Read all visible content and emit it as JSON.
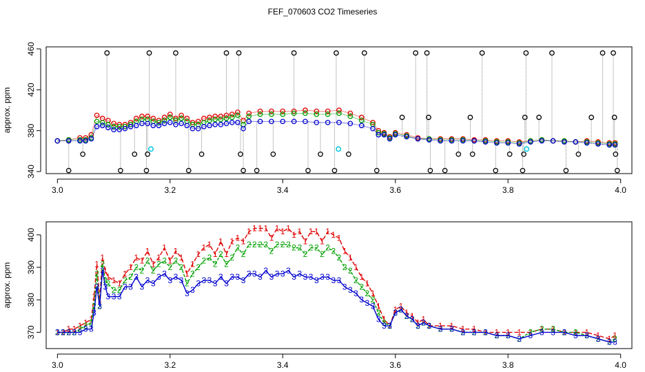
{
  "title": "FEF_070603  CO2 Timeseries",
  "chart_data": [
    {
      "type": "scatter",
      "ylabel": "approx. ppm",
      "xlim": [
        2.98,
        4.02
      ],
      "ylim": [
        338,
        462
      ],
      "xticks": [
        3.0,
        3.2,
        3.4,
        3.6,
        3.8,
        4.0
      ],
      "xtick_labels": [
        "3.0",
        "3.2",
        "3.4",
        "3.6",
        "3.8",
        "4.0"
      ],
      "yticks": [
        340,
        380,
        420,
        460
      ],
      "ytick_labels": [
        "340",
        "380",
        "420",
        "460"
      ],
      "series_colors": [
        "#e00000",
        "#00a000",
        "#0000d0"
      ],
      "outlier_color": "#000000",
      "cyan_color": "#00c8e0",
      "grid": false,
      "x": [
        3.0,
        3.02,
        3.04,
        3.05,
        3.06,
        3.07,
        3.08,
        3.09,
        3.1,
        3.11,
        3.12,
        3.13,
        3.14,
        3.15,
        3.16,
        3.17,
        3.18,
        3.19,
        3.2,
        3.21,
        3.22,
        3.23,
        3.24,
        3.25,
        3.26,
        3.27,
        3.28,
        3.29,
        3.3,
        3.31,
        3.32,
        3.33,
        3.34,
        3.36,
        3.38,
        3.4,
        3.42,
        3.44,
        3.46,
        3.48,
        3.5,
        3.52,
        3.54,
        3.56,
        3.57,
        3.58,
        3.59,
        3.6,
        3.62,
        3.64,
        3.66,
        3.68,
        3.7,
        3.72,
        3.74,
        3.76,
        3.78,
        3.8,
        3.82,
        3.84,
        3.86,
        3.88,
        3.9,
        3.92,
        3.94,
        3.96,
        3.98,
        3.99
      ],
      "series": [
        {
          "values": [
            370,
            371,
            373,
            373,
            376,
            395,
            392,
            390,
            387,
            386,
            386,
            388,
            392,
            394,
            394,
            392,
            390,
            393,
            396,
            392,
            395,
            392,
            388,
            389,
            392,
            393,
            394,
            394,
            395,
            396,
            398,
            390,
            397,
            399,
            399,
            399,
            399,
            400,
            399,
            399,
            400,
            397,
            393,
            388,
            380,
            378,
            374,
            378,
            376,
            373,
            372,
            372,
            372,
            372,
            371,
            371,
            370,
            370,
            369,
            370,
            371,
            370,
            370,
            369,
            370,
            369,
            368,
            368
          ]
        },
        {
          "values": [
            370,
            371,
            371,
            371,
            373,
            389,
            388,
            386,
            384,
            384,
            384,
            386,
            389,
            391,
            391,
            389,
            388,
            390,
            393,
            390,
            392,
            389,
            386,
            386,
            388,
            390,
            391,
            391,
            392,
            393,
            395,
            386,
            394,
            396,
            396,
            396,
            397,
            397,
            396,
            396,
            397,
            394,
            390,
            386,
            378,
            377,
            373,
            377,
            375,
            372,
            372,
            371,
            371,
            371,
            370,
            370,
            369,
            369,
            368,
            370,
            371,
            370,
            370,
            369,
            369,
            368,
            367,
            367
          ]
        },
        {
          "values": [
            370,
            370,
            370,
            370,
            372,
            384,
            385,
            383,
            381,
            381,
            382,
            384,
            385,
            387,
            387,
            385,
            385,
            387,
            388,
            386,
            387,
            385,
            382,
            382,
            384,
            385,
            386,
            386,
            387,
            388,
            388,
            382,
            389,
            389,
            389,
            389,
            389,
            389,
            388,
            388,
            388,
            387,
            385,
            382,
            376,
            376,
            372,
            376,
            374,
            372,
            371,
            370,
            370,
            370,
            370,
            369,
            368,
            368,
            367,
            369,
            370,
            370,
            369,
            369,
            368,
            367,
            366,
            366
          ]
        }
      ],
      "outliers": [
        {
          "x": 3.02,
          "high": 341
        },
        {
          "x": 3.045,
          "high": 357
        },
        {
          "x": 3.088,
          "high": 456
        },
        {
          "x": 3.112,
          "high": 341
        },
        {
          "x": 3.137,
          "high": 357
        },
        {
          "x": 3.158,
          "high": 341
        },
        {
          "x": 3.16,
          "high": 357
        },
        {
          "x": 3.163,
          "high": 456
        },
        {
          "x": 3.21,
          "high": 456
        },
        {
          "x": 3.233,
          "high": 341
        },
        {
          "x": 3.256,
          "high": 357
        },
        {
          "x": 3.3,
          "high": 456
        },
        {
          "x": 3.322,
          "high": 456
        },
        {
          "x": 3.325,
          "high": 357
        },
        {
          "x": 3.33,
          "high": 341
        },
        {
          "x": 3.354,
          "high": 341
        },
        {
          "x": 3.383,
          "high": 357
        },
        {
          "x": 3.42,
          "high": 456
        },
        {
          "x": 3.445,
          "high": 341
        },
        {
          "x": 3.467,
          "high": 357
        },
        {
          "x": 3.492,
          "high": 341
        },
        {
          "x": 3.495,
          "high": 456
        },
        {
          "x": 3.517,
          "high": 357
        },
        {
          "x": 3.545,
          "high": 456
        },
        {
          "x": 3.567,
          "high": 341
        },
        {
          "x": 3.612,
          "high": 393
        },
        {
          "x": 3.636,
          "high": 456
        },
        {
          "x": 3.656,
          "high": 456
        },
        {
          "x": 3.659,
          "high": 393
        },
        {
          "x": 3.662,
          "high": 341
        },
        {
          "x": 3.688,
          "high": 341
        },
        {
          "x": 3.712,
          "high": 357
        },
        {
          "x": 3.737,
          "high": 357
        },
        {
          "x": 3.733,
          "high": 393
        },
        {
          "x": 3.754,
          "high": 456
        },
        {
          "x": 3.778,
          "high": 341
        },
        {
          "x": 3.803,
          "high": 357
        },
        {
          "x": 3.826,
          "high": 341
        },
        {
          "x": 3.828,
          "high": 357
        },
        {
          "x": 3.83,
          "high": 393
        },
        {
          "x": 3.832,
          "high": 456
        },
        {
          "x": 3.855,
          "high": 393
        },
        {
          "x": 3.878,
          "high": 456
        },
        {
          "x": 3.903,
          "high": 341
        },
        {
          "x": 3.925,
          "high": 357
        },
        {
          "x": 3.948,
          "high": 393
        },
        {
          "x": 3.968,
          "high": 456
        },
        {
          "x": 3.987,
          "high": 456
        },
        {
          "x": 3.989,
          "high": 393
        },
        {
          "x": 3.991,
          "high": 357
        },
        {
          "x": 3.994,
          "high": 341
        }
      ],
      "cyan_points": [
        {
          "x": 3.166,
          "y": 362
        },
        {
          "x": 3.499,
          "y": 362
        },
        {
          "x": 3.833,
          "y": 362
        }
      ]
    },
    {
      "type": "line",
      "ylabel": "approx. ppm",
      "xlim": [
        2.98,
        4.02
      ],
      "ylim": [
        365,
        404
      ],
      "xticks": [
        3.0,
        3.2,
        3.4,
        3.6,
        3.8,
        4.0
      ],
      "xtick_labels": [
        "3.0",
        "3.2",
        "3.4",
        "3.6",
        "3.8",
        "4.0"
      ],
      "yticks": [
        370,
        380,
        390,
        400
      ],
      "ytick_labels": [
        "370",
        "380",
        "390",
        "400"
      ],
      "series_colors": [
        "#e00000",
        "#00a000",
        "#0000d0"
      ],
      "grid": false,
      "x": [
        3.0,
        3.01,
        3.02,
        3.03,
        3.04,
        3.05,
        3.06,
        3.065,
        3.07,
        3.075,
        3.08,
        3.085,
        3.09,
        3.1,
        3.11,
        3.12,
        3.13,
        3.14,
        3.15,
        3.16,
        3.17,
        3.18,
        3.19,
        3.2,
        3.21,
        3.22,
        3.23,
        3.24,
        3.25,
        3.26,
        3.27,
        3.28,
        3.29,
        3.3,
        3.31,
        3.32,
        3.33,
        3.34,
        3.35,
        3.36,
        3.37,
        3.38,
        3.39,
        3.4,
        3.41,
        3.42,
        3.43,
        3.44,
        3.45,
        3.46,
        3.47,
        3.48,
        3.49,
        3.5,
        3.51,
        3.52,
        3.53,
        3.54,
        3.55,
        3.56,
        3.57,
        3.58,
        3.59,
        3.6,
        3.61,
        3.62,
        3.63,
        3.64,
        3.65,
        3.66,
        3.68,
        3.7,
        3.72,
        3.74,
        3.76,
        3.78,
        3.8,
        3.82,
        3.84,
        3.86,
        3.88,
        3.9,
        3.92,
        3.94,
        3.96,
        3.98,
        3.99
      ],
      "series": [
        {
          "marker": "1",
          "values": [
            370,
            370,
            371,
            371,
            372,
            373,
            374,
            381,
            391,
            380,
            393,
            389,
            387,
            386,
            385,
            388,
            390,
            393,
            392,
            395,
            391,
            393,
            396,
            392,
            395,
            393,
            388,
            391,
            394,
            396,
            397,
            394,
            398,
            394,
            398,
            399,
            398,
            401,
            402,
            402,
            402,
            399,
            402,
            401,
            402,
            400,
            401,
            398,
            401,
            401,
            398,
            401,
            400,
            399,
            395,
            393,
            390,
            387,
            385,
            382,
            378,
            374,
            372,
            377,
            378,
            376,
            375,
            373,
            374,
            372,
            372,
            372,
            371,
            371,
            370,
            370,
            370,
            370,
            370,
            371,
            371,
            370,
            370,
            370,
            369,
            368,
            369
          ]
        },
        {
          "marker": "2",
          "values": [
            370,
            370,
            370,
            370,
            371,
            372,
            373,
            378,
            388,
            378,
            391,
            386,
            385,
            383,
            383,
            386,
            387,
            390,
            389,
            392,
            389,
            391,
            392,
            390,
            392,
            390,
            385,
            388,
            390,
            392,
            393,
            391,
            394,
            391,
            393,
            396,
            394,
            397,
            397,
            397,
            397,
            395,
            397,
            397,
            397,
            396,
            396,
            394,
            396,
            396,
            394,
            396,
            395,
            393,
            390,
            389,
            386,
            384,
            382,
            380,
            376,
            373,
            372,
            376,
            377,
            375,
            374,
            372,
            373,
            372,
            371,
            371,
            370,
            370,
            370,
            369,
            369,
            368,
            370,
            371,
            371,
            370,
            370,
            369,
            368,
            367,
            368
          ]
        },
        {
          "marker": "3",
          "values": [
            370,
            370,
            370,
            370,
            370,
            371,
            371,
            376,
            384,
            378,
            389,
            384,
            381,
            381,
            381,
            384,
            384,
            387,
            384,
            386,
            385,
            387,
            388,
            386,
            387,
            386,
            382,
            383,
            385,
            386,
            386,
            385,
            387,
            385,
            387,
            387,
            386,
            388,
            388,
            387,
            389,
            387,
            388,
            388,
            389,
            387,
            388,
            387,
            387,
            386,
            387,
            387,
            386,
            386,
            384,
            383,
            382,
            380,
            379,
            378,
            374,
            372,
            372,
            376,
            377,
            375,
            374,
            372,
            373,
            372,
            371,
            371,
            370,
            370,
            370,
            369,
            369,
            368,
            369,
            370,
            370,
            370,
            369,
            369,
            368,
            367,
            367
          ]
        }
      ]
    }
  ]
}
